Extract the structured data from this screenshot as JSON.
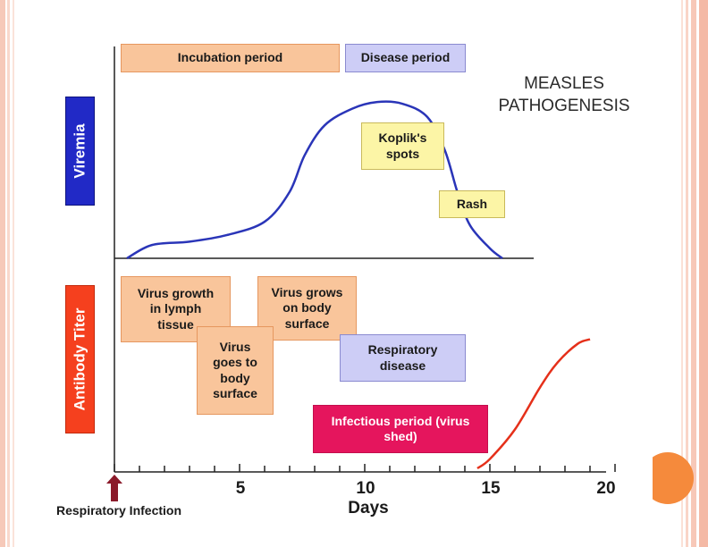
{
  "title": "MEASLES\nPATHOGENESIS",
  "phases": {
    "incubation": "Incubation period",
    "disease": "Disease period"
  },
  "panels": {
    "viremia": "Viremia",
    "antibody": "Antibody Titer"
  },
  "events": {
    "kopliks": "Koplik's\nspots",
    "rash": "Rash",
    "virus_lymph": "Virus growth\nin lymph\ntissue",
    "virus_body_surface": "Virus grows\non body\nsurface",
    "virus_goes_body": "Virus\ngoes to\nbody\nsurface",
    "respiratory": "Respiratory\ndisease",
    "infectious": "Infectious period (virus\nshed)"
  },
  "axis": {
    "xlabel": "Days",
    "ticks": [
      "5",
      "10",
      "15",
      "20"
    ],
    "infection_label": "Respiratory Infection"
  },
  "colors": {
    "viremia_curve": "#2a35b8",
    "antibody_curve": "#e5301a",
    "infection_arrow": "#8b1a2a",
    "accent_dot": "#f58a3c"
  },
  "chart_data": {
    "type": "line",
    "title": "MEASLES PATHOGENESIS",
    "xlabel": "Days",
    "ylabel": "",
    "xlim": [
      0,
      20
    ],
    "series": [
      {
        "name": "Viremia",
        "x": [
          0.5,
          1.5,
          3,
          4.5,
          6,
          7,
          7.6,
          8.4,
          9.5,
          10.5,
          11.5,
          12.5,
          13.2,
          13.7,
          14.2,
          15,
          15.5
        ],
        "y": [
          0.0,
          0.08,
          0.1,
          0.14,
          0.22,
          0.4,
          0.62,
          0.8,
          0.9,
          0.94,
          0.93,
          0.85,
          0.65,
          0.4,
          0.2,
          0.06,
          0.0
        ]
      },
      {
        "name": "Antibody Titer",
        "x": [
          14.5,
          15,
          16,
          17,
          17.7,
          18.5,
          19
        ],
        "y": [
          0.0,
          0.06,
          0.25,
          0.52,
          0.68,
          0.8,
          0.83
        ]
      }
    ]
  }
}
